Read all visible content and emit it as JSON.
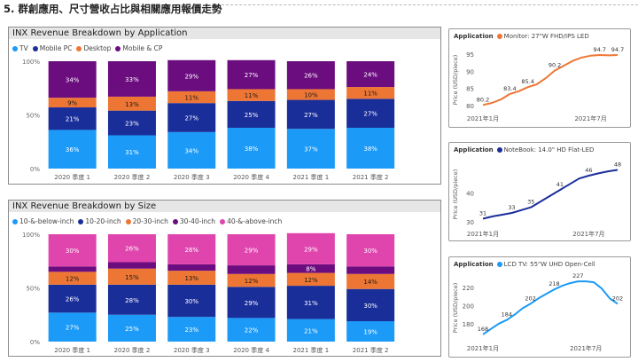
{
  "page": {
    "title": "5. 群創應用、尺寸營收占比與相關應用報價走勢"
  },
  "chart_data": [
    {
      "type": "bar",
      "stacked": true,
      "percent": true,
      "title": "INX Revenue Breakdown by Application",
      "categories": [
        "2020 季度 1",
        "2020 季度 2",
        "2020 季度 3",
        "2020 季度 4",
        "2021 季度 1",
        "2021 季度 2"
      ],
      "series": [
        {
          "name": "TV",
          "color": "#1b9af7",
          "values": [
            36,
            31,
            34,
            38,
            37,
            38
          ]
        },
        {
          "name": "Mobile PC",
          "color": "#1a2e9a",
          "values": [
            21,
            23,
            27,
            25,
            27,
            27
          ]
        },
        {
          "name": "Desktop",
          "color": "#ee7634",
          "values": [
            9,
            13,
            11,
            11,
            10,
            11
          ]
        },
        {
          "name": "Mobile & CP",
          "color": "#6b0c7f",
          "values": [
            34,
            33,
            29,
            27,
            26,
            24
          ]
        }
      ],
      "ytick_labels": [
        "0%",
        "50%",
        "100%"
      ],
      "ylim": [
        0,
        100
      ],
      "legend_position": "top-left"
    },
    {
      "type": "bar",
      "stacked": true,
      "percent": true,
      "title": "INX Revenue Breakdown by Size",
      "categories": [
        "2020 季度 1",
        "2020 季度 2",
        "2020 季度 3",
        "2020 季度 4",
        "2021 季度 1",
        "2021 季度 2"
      ],
      "series": [
        {
          "name": "10-&-below-inch",
          "color": "#1b9af7",
          "values": [
            27,
            25,
            23,
            22,
            21,
            19
          ]
        },
        {
          "name": "10-20-inch",
          "color": "#1a2e9a",
          "values": [
            26,
            28,
            30,
            29,
            31,
            30
          ]
        },
        {
          "name": "20-30-inch",
          "color": "#ee7634",
          "values": [
            12,
            15,
            13,
            12,
            12,
            14
          ]
        },
        {
          "name": "30-40-inch",
          "color": "#6b0c7f",
          "values": [
            5,
            6,
            6,
            8,
            8,
            7
          ]
        },
        {
          "name": "40-&-above-inch",
          "color": "#e044ad",
          "values": [
            30,
            26,
            28,
            29,
            29,
            30
          ]
        }
      ],
      "hidden_labels": {
        "30-40-inch": [
          false,
          false,
          false,
          false,
          true,
          false
        ]
      },
      "ytick_labels": [
        "0%",
        "50%",
        "100%"
      ],
      "ylim": [
        0,
        100
      ],
      "legend_position": "top-left"
    },
    {
      "type": "line",
      "legend_title": "Application",
      "series": [
        {
          "name": "Monitor: 27\"W FHD/IPS LED",
          "color": "#ee7634",
          "values": [
            80.2,
            80.8,
            81.8,
            83.4,
            84.2,
            85.4,
            86.2,
            88.0,
            90.2,
            91.6,
            93.0,
            94.0,
            94.5,
            94.7,
            94.6,
            94.7
          ],
          "labels": {
            "0": "80.2",
            "3": "83.4",
            "5": "85.4",
            "8": "90.2",
            "13": "94.7",
            "15": "94.7"
          }
        }
      ],
      "ylabel": "Price (USD/piece)",
      "yticks": [
        80,
        85,
        90,
        95
      ],
      "ylim": [
        79,
        96
      ],
      "xtick_labels": [
        "2021年1月",
        "2021年7月"
      ],
      "xtick_index": [
        0,
        12
      ]
    },
    {
      "type": "line",
      "legend_title": "Application",
      "series": [
        {
          "name": "NoteBook: 14.0\" HD Flat-LED",
          "color": "#1a2e9a",
          "values": [
            31,
            31.8,
            32.4,
            33,
            34,
            35,
            37,
            39,
            41,
            43,
            45,
            46,
            46.8,
            47.5,
            48
          ],
          "labels": {
            "0": "31",
            "3": "33",
            "5": "35",
            "8": "41",
            "11": "46",
            "14": "48"
          }
        }
      ],
      "ylabel": "Price (USD/piece)",
      "yticks": [
        30,
        40
      ],
      "ylim": [
        29,
        50
      ],
      "xtick_labels": [
        "2021年1月",
        "2021年7月"
      ],
      "xtick_index": [
        0,
        11
      ]
    },
    {
      "type": "line",
      "legend_title": "Application",
      "series": [
        {
          "name": "LCD TV: 55\"W UHD Open-Cell",
          "color": "#1b9af7",
          "values": [
            168,
            174,
            180,
            184,
            190,
            197,
            202,
            208,
            213,
            218,
            222,
            225,
            227,
            227,
            226,
            219,
            208,
            202
          ],
          "labels": {
            "0": "168",
            "3": "184",
            "6": "202",
            "9": "218",
            "12": "227",
            "17": "202"
          }
        }
      ],
      "ylabel": "Price (USD/piece)",
      "yticks": [
        180,
        200,
        220
      ],
      "ylim": [
        163,
        232
      ],
      "xtick_labels": [
        "2021年1月",
        "2021年7月"
      ],
      "xtick_index": [
        0,
        13
      ]
    }
  ]
}
